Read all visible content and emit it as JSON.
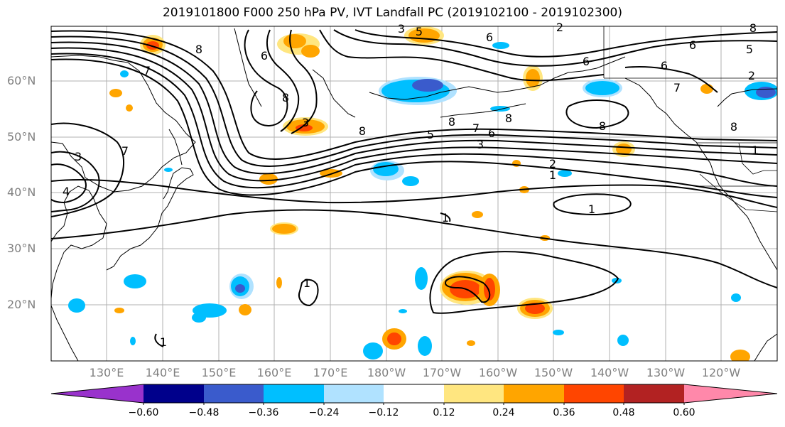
{
  "title": "2019101800 F000 250 hPa PV, IVT Landfall PC (2019102100 - 2019102300)",
  "lat_labels": [
    "60°N",
    "50°N",
    "40°N",
    "30°N",
    "20°N"
  ],
  "lon_labels": [
    "130°E",
    "140°E",
    "150°E",
    "160°E",
    "170°E",
    "180°W",
    "170°W",
    "160°W",
    "150°W",
    "140°W",
    "130°W",
    "120°W"
  ],
  "colorbar": {
    "ticks": [
      "−0.60",
      "−0.48",
      "−0.36",
      "−0.24",
      "−0.12",
      "0.12",
      "0.24",
      "0.36",
      "0.48",
      "0.60"
    ],
    "colors": [
      "#9932cc",
      "#00008b",
      "#3a5bcc",
      "#00bfff",
      "#b0e2ff",
      "#ffffff",
      "#ffe680",
      "#ffa500",
      "#ff4500",
      "#b22222",
      "#ff88aa"
    ]
  },
  "contour_labels": [
    "8",
    "7",
    "3",
    "5",
    "2",
    "6",
    "8",
    "3",
    "8",
    "8",
    "5",
    "6",
    "7",
    "8",
    "6",
    "6",
    "8",
    "8",
    "7",
    "6",
    "5",
    "3",
    "2",
    "1",
    "1",
    "7",
    "3",
    "4",
    "2",
    "1",
    "1",
    "1",
    "1",
    "6",
    "8"
  ],
  "colors": {
    "contour": "#000000",
    "grid": "#b0b0b0",
    "tick_label": "#808080"
  }
}
